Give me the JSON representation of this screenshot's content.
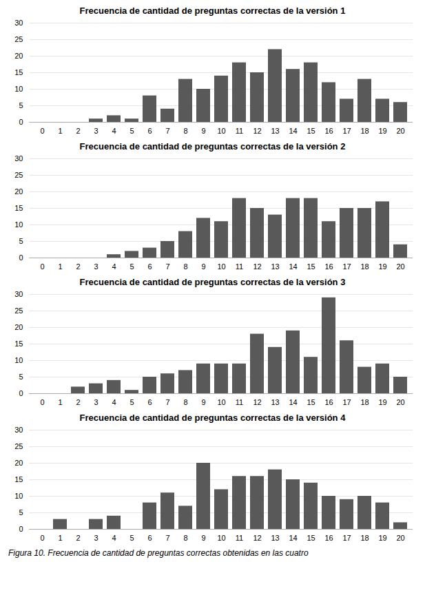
{
  "chart_data": [
    {
      "type": "bar",
      "title": "Frecuencia de cantidad de preguntas correctas de la versión 1",
      "categories": [
        0,
        1,
        2,
        3,
        4,
        5,
        6,
        7,
        8,
        9,
        10,
        11,
        12,
        13,
        14,
        15,
        16,
        17,
        18,
        19,
        20
      ],
      "values": [
        0,
        0,
        0,
        1,
        2,
        1,
        8,
        4,
        13,
        10,
        14,
        18,
        15,
        22,
        16,
        18,
        12,
        7,
        13,
        7,
        6
      ],
      "color": "#595959",
      "ylim": [
        0,
        30
      ],
      "yticks": [
        0,
        5,
        10,
        15,
        20,
        25,
        30
      ],
      "grid": true
    },
    {
      "type": "bar",
      "title": "Frecuencia de cantidad de preguntas correctas de la versión 2",
      "categories": [
        0,
        1,
        2,
        3,
        4,
        5,
        6,
        7,
        8,
        9,
        10,
        11,
        12,
        13,
        14,
        15,
        16,
        17,
        18,
        19,
        20
      ],
      "values": [
        0,
        0,
        0,
        0,
        1,
        2,
        3,
        5,
        8,
        12,
        11,
        18,
        15,
        13,
        18,
        18,
        11,
        15,
        15,
        17,
        4
      ],
      "color": "#595959",
      "ylim": [
        0,
        30
      ],
      "yticks": [
        0,
        5,
        10,
        15,
        20,
        25,
        30
      ],
      "grid": true
    },
    {
      "type": "bar",
      "title": "Frecuencia de cantidad de preguntas correctas de la versión 3",
      "categories": [
        0,
        1,
        2,
        3,
        4,
        5,
        6,
        7,
        8,
        9,
        10,
        11,
        12,
        13,
        14,
        15,
        16,
        17,
        18,
        19,
        20
      ],
      "values": [
        0,
        0,
        2,
        3,
        4,
        1,
        5,
        6,
        7,
        9,
        9,
        9,
        18,
        14,
        19,
        11,
        29,
        16,
        8,
        9,
        5
      ],
      "color": "#595959",
      "ylim": [
        0,
        30
      ],
      "yticks": [
        0,
        5,
        10,
        15,
        20,
        25,
        30
      ],
      "grid": true
    },
    {
      "type": "bar",
      "title": "Frecuencia de cantidad de preguntas correctas de la versión 4",
      "categories": [
        0,
        1,
        2,
        3,
        4,
        5,
        6,
        7,
        8,
        9,
        10,
        11,
        12,
        13,
        14,
        15,
        16,
        17,
        18,
        19,
        20
      ],
      "values": [
        0,
        3,
        0,
        3,
        4,
        0,
        8,
        11,
        7,
        20,
        12,
        16,
        16,
        18,
        15,
        14,
        10,
        9,
        10,
        8,
        2
      ],
      "color": "#595959",
      "ylim": [
        0,
        30
      ],
      "yticks": [
        0,
        5,
        10,
        15,
        20,
        25,
        30
      ],
      "grid": true
    }
  ],
  "caption": "Figura 10. Frecuencia de cantidad de preguntas correctas obtenidas en las cuatro"
}
